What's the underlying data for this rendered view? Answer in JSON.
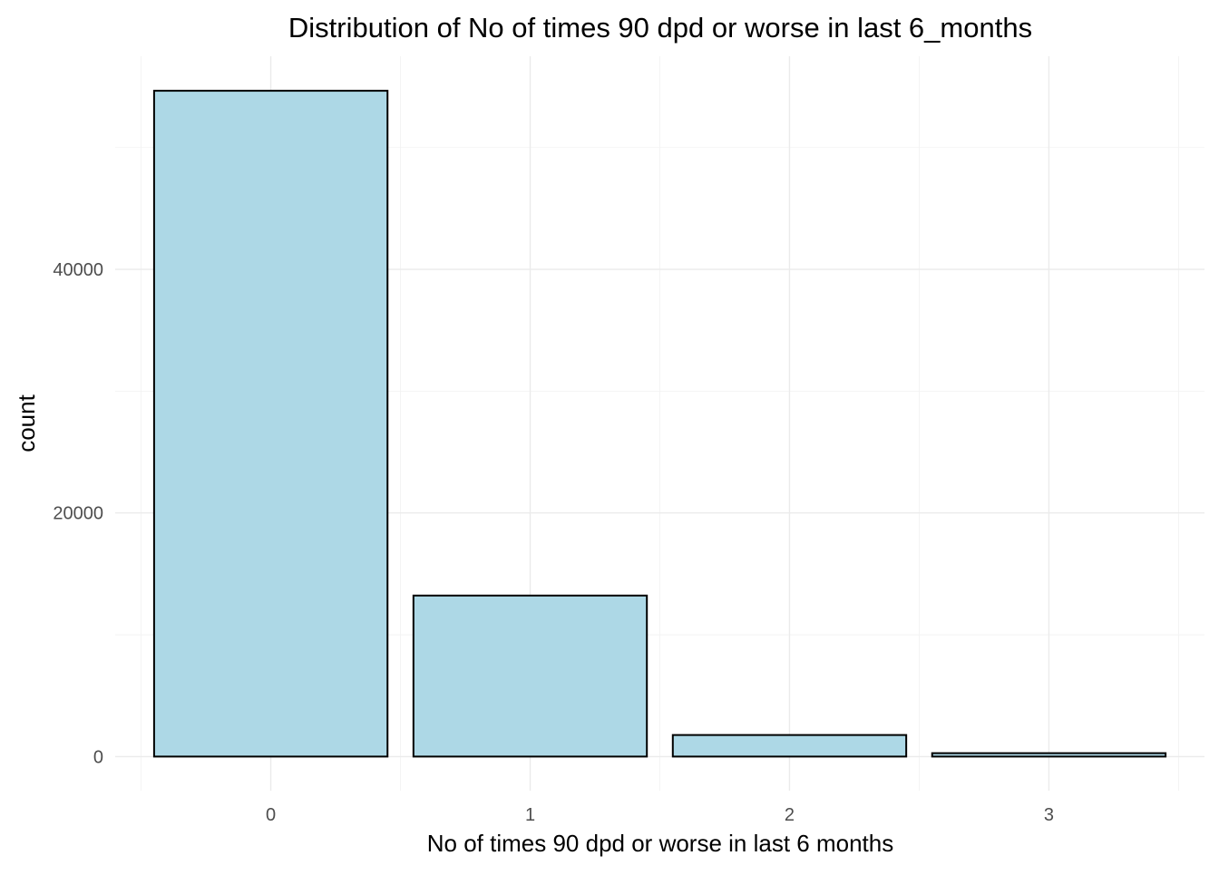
{
  "chart_data": {
    "type": "bar",
    "title": "Distribution of No of times 90 dpd or worse in last 6_months",
    "xlabel": "No of times 90 dpd or worse in last 6 months",
    "ylabel": "count",
    "categories": [
      "0",
      "1",
      "2",
      "3"
    ],
    "values": [
      54664,
      13220,
      1770,
      280
    ],
    "y_ticks": [
      0,
      20000,
      40000
    ],
    "y_tick_labels": [
      "0",
      "20000",
      "40000"
    ],
    "ylim": [
      -2800,
      57500
    ],
    "grid": true,
    "bar_fill": "#add8e6",
    "bar_stroke": "#000000"
  }
}
